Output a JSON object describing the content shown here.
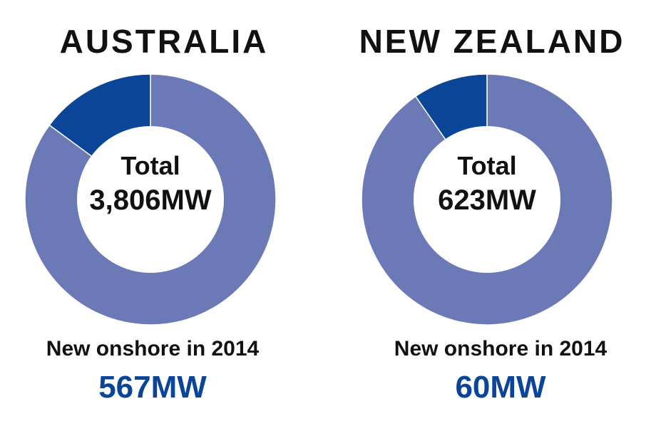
{
  "colors": {
    "total": "#6b7ab7",
    "new": "#0b4597",
    "text": "#111111",
    "accent": "#0b4597"
  },
  "chart_data": [
    {
      "type": "pie",
      "title": "AUSTRALIA",
      "center_label": "Total",
      "center_value": "3,806MW",
      "total_mw": 3806,
      "new_mw": 567,
      "caption": "New onshore in 2014",
      "highlight": "567MW"
    },
    {
      "type": "pie",
      "title": "NEW ZEALAND",
      "center_label": "Total",
      "center_value": "623MW",
      "total_mw": 623,
      "new_mw": 60,
      "caption": "New onshore in 2014",
      "highlight": "60MW"
    }
  ]
}
